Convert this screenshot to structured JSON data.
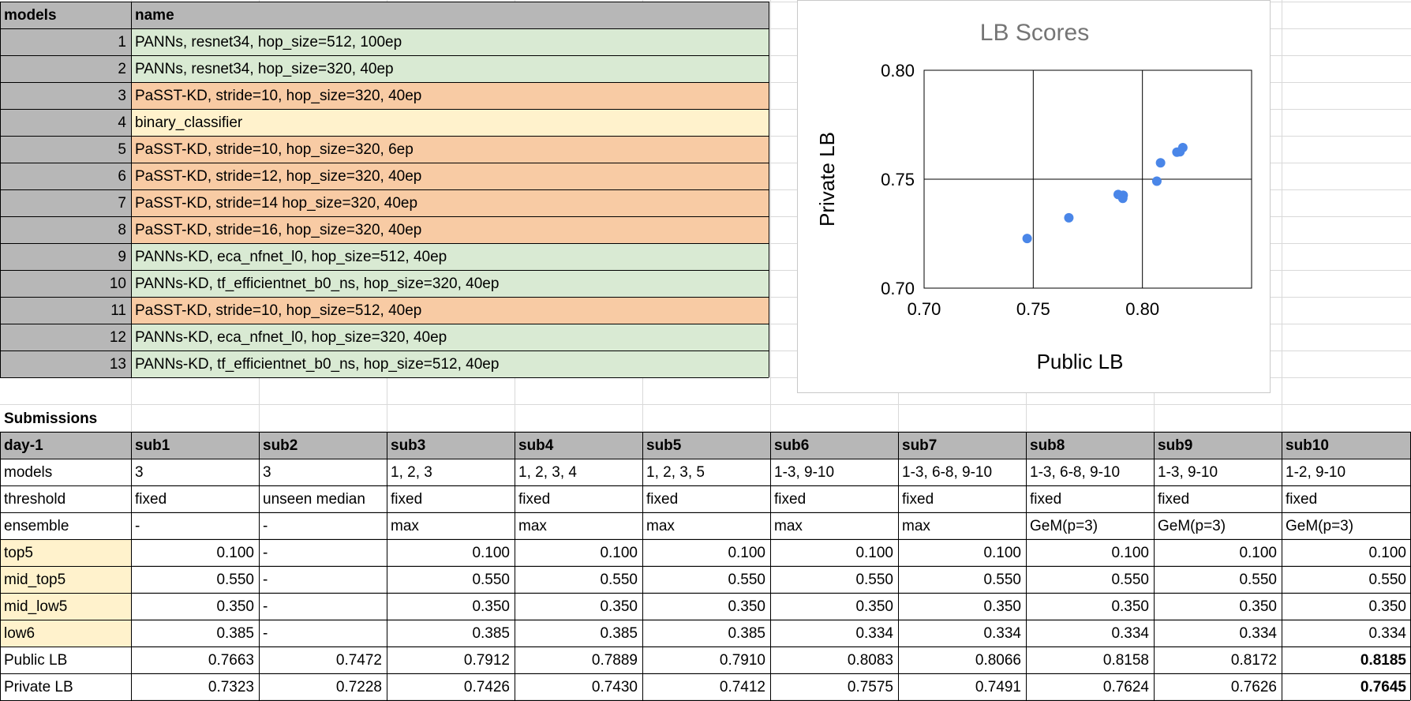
{
  "models_table": {
    "headers": {
      "col1": "models",
      "col2": "name"
    },
    "rows": [
      {
        "id": "1",
        "name": "PANNs, resnet34, hop_size=512, 100ep",
        "color": "#d9ead3"
      },
      {
        "id": "2",
        "name": "PANNs, resnet34, hop_size=320, 40ep",
        "color": "#d9ead3"
      },
      {
        "id": "3",
        "name": "PaSST-KD, stride=10, hop_size=320, 40ep",
        "color": "#f8cba4"
      },
      {
        "id": "4",
        "name": "binary_classifier",
        "color": "#fff2cc"
      },
      {
        "id": "5",
        "name": "PaSST-KD, stride=10, hop_size=320, 6ep",
        "color": "#f8cba4"
      },
      {
        "id": "6",
        "name": "PaSST-KD, stride=12, hop_size=320, 40ep",
        "color": "#f8cba4"
      },
      {
        "id": "7",
        "name": "PaSST-KD, stride=14 hop_size=320, 40ep",
        "color": "#f8cba4"
      },
      {
        "id": "8",
        "name": "PaSST-KD, stride=16, hop_size=320, 40ep",
        "color": "#f8cba4"
      },
      {
        "id": "9",
        "name": "PANNs-KD, eca_nfnet_l0, hop_size=512, 40ep",
        "color": "#d9ead3"
      },
      {
        "id": "10",
        "name": "PANNs-KD, tf_efficientnet_b0_ns, hop_size=320, 40ep",
        "color": "#d9ead3"
      },
      {
        "id": "11",
        "name": "PaSST-KD, stride=10, hop_size=512, 40ep",
        "color": "#f8cba4"
      },
      {
        "id": "12",
        "name": "PANNs-KD, eca_nfnet_l0, hop_size=320, 40ep",
        "color": "#d9ead3"
      },
      {
        "id": "13",
        "name": "PANNs-KD, tf_efficientnet_b0_ns, hop_size=512, 40ep",
        "color": "#d9ead3"
      }
    ]
  },
  "submissions": {
    "section_title": "Submissions",
    "header": [
      "day-1",
      "sub1",
      "sub2",
      "sub3",
      "sub4",
      "sub5",
      "sub6",
      "sub7",
      "sub8",
      "sub9",
      "sub10"
    ],
    "rows": [
      {
        "label": "models",
        "label_color": "#ffffff",
        "align": "left",
        "cells": [
          "3",
          "3",
          "1, 2, 3",
          "1, 2, 3, 4",
          "1, 2, 3, 5",
          "1-3, 9-10",
          "1-3, 6-8, 9-10",
          "1-3, 6-8, 9-10",
          "1-3, 9-10",
          "1-2, 9-10"
        ]
      },
      {
        "label": "threshold",
        "label_color": "#ffffff",
        "align": "left",
        "cells": [
          "fixed",
          "unseen median",
          "fixed",
          "fixed",
          "fixed",
          "fixed",
          "fixed",
          "fixed",
          "fixed",
          "fixed"
        ]
      },
      {
        "label": "ensemble",
        "label_color": "#ffffff",
        "align": "left",
        "cells": [
          "-",
          "-",
          "max",
          "max",
          "max",
          "max",
          "max",
          "GeM(p=3)",
          "GeM(p=3)",
          "GeM(p=3)"
        ]
      },
      {
        "label": "top5",
        "label_color": "#fff2cc",
        "align": "right",
        "cells": [
          "0.100",
          "-",
          "0.100",
          "0.100",
          "0.100",
          "0.100",
          "0.100",
          "0.100",
          "0.100",
          "0.100"
        ]
      },
      {
        "label": "mid_top5",
        "label_color": "#fff2cc",
        "align": "right",
        "cells": [
          "0.550",
          "-",
          "0.550",
          "0.550",
          "0.550",
          "0.550",
          "0.550",
          "0.550",
          "0.550",
          "0.550"
        ]
      },
      {
        "label": "mid_low5",
        "label_color": "#fff2cc",
        "align": "right",
        "cells": [
          "0.350",
          "-",
          "0.350",
          "0.350",
          "0.350",
          "0.350",
          "0.350",
          "0.350",
          "0.350",
          "0.350"
        ]
      },
      {
        "label": "low6",
        "label_color": "#fff2cc",
        "align": "right",
        "cells": [
          "0.385",
          "-",
          "0.385",
          "0.385",
          "0.385",
          "0.334",
          "0.334",
          "0.334",
          "0.334",
          "0.334"
        ]
      },
      {
        "label": "Public LB",
        "label_color": "#ffffff",
        "align": "right",
        "cells": [
          "0.7663",
          "0.7472",
          "0.7912",
          "0.7889",
          "0.7910",
          "0.8083",
          "0.8066",
          "0.8158",
          "0.8172",
          "0.8185"
        ],
        "bold_last": true
      },
      {
        "label": "Private LB",
        "label_color": "#ffffff",
        "align": "right",
        "cells": [
          "0.7323",
          "0.7228",
          "0.7426",
          "0.7430",
          "0.7412",
          "0.7575",
          "0.7491",
          "0.7624",
          "0.7626",
          "0.7645"
        ],
        "bold_last": true
      }
    ]
  },
  "chart_data": {
    "type": "scatter",
    "title": "LB Scores",
    "xlabel": "Public LB",
    "ylabel": "Private LB",
    "xlim": [
      0.7,
      0.85
    ],
    "ylim": [
      0.7,
      0.8
    ],
    "xticks": [
      "0.70",
      "0.75",
      "0.80"
    ],
    "yticks": [
      "0.70",
      "0.75",
      "0.80"
    ],
    "grid": true,
    "point_color": "#4a86e8",
    "x": [
      0.7663,
      0.7472,
      0.7912,
      0.7889,
      0.791,
      0.8083,
      0.8066,
      0.8158,
      0.8172,
      0.8185
    ],
    "y": [
      0.7323,
      0.7228,
      0.7426,
      0.743,
      0.7412,
      0.7575,
      0.7491,
      0.7624,
      0.7626,
      0.7645
    ]
  }
}
